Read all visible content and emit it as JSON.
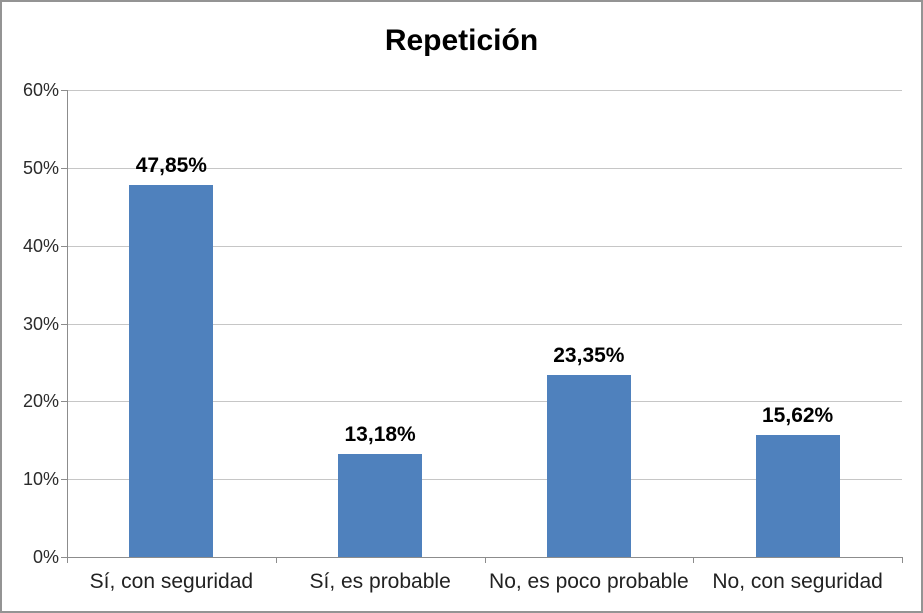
{
  "chart_data": {
    "type": "bar",
    "title": "Repetición",
    "categories": [
      "Sí, con seguridad",
      "Sí, es probable",
      "No, es poco probable",
      "No, con seguridad"
    ],
    "values": [
      47.85,
      13.18,
      23.35,
      15.62
    ],
    "value_labels": [
      "47,85%",
      "13,18%",
      "23,35%",
      "15,62%"
    ],
    "xlabel": "",
    "ylabel": "",
    "ylim": [
      0,
      60
    ],
    "ytick_step": 10,
    "ytick_labels": [
      "0%",
      "10%",
      "20%",
      "30%",
      "40%",
      "50%",
      "60%"
    ],
    "grid": true,
    "legend_position": "none",
    "bar_color": "#4F81BD",
    "gridline_color": "#C6C6C6",
    "axis_color": "#8C8C8C",
    "title_color": "#000000",
    "value_label_color": "#000000",
    "tick_label_color": "#2B2B2B"
  }
}
